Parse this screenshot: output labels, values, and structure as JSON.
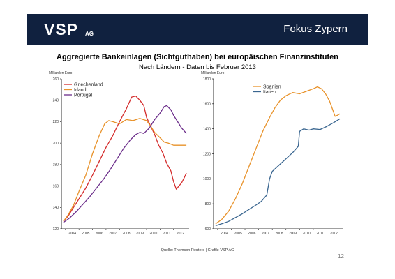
{
  "header": {
    "logo": "VSP",
    "logo_sub": "AG",
    "title": "Fokus Zypern",
    "bg_color": "#10213f"
  },
  "slide": {
    "title": "Aggregierte Bankeinlagen (Sichtguthaben) bei europäischen Finanzinstituten",
    "subtitle": "Nach Ländern - Daten bis Februar 2013",
    "source": "Quelle: Thomson Reuters | Grafik: VSP AG",
    "page_number": "12"
  },
  "chart_data": [
    {
      "type": "line",
      "ylabel": "Milliarden Euro",
      "ylim": [
        120,
        260
      ],
      "yticks": [
        "120",
        "140",
        "160",
        "180",
        "200",
        "220",
        "240",
        "260"
      ],
      "xlim": [
        2003.7,
        2013.15
      ],
      "xticks": [
        "2004",
        "2005",
        "2006",
        "2007",
        "2008",
        "2009",
        "2010",
        "2011",
        "2012"
      ],
      "legend_position": "top-left",
      "series": [
        {
          "name": "Griechenland",
          "color": "#d42c2c",
          "points": [
            [
              2003.85,
              127
            ],
            [
              2004.2,
              132
            ],
            [
              2004.6,
              140
            ],
            [
              2005.0,
              148
            ],
            [
              2005.5,
              158
            ],
            [
              2006.0,
              170
            ],
            [
              2006.5,
              183
            ],
            [
              2007.0,
              196
            ],
            [
              2007.5,
              207
            ],
            [
              2008.0,
              220
            ],
            [
              2008.5,
              232
            ],
            [
              2008.9,
              243
            ],
            [
              2009.2,
              244
            ],
            [
              2009.5,
              240
            ],
            [
              2009.8,
              235
            ],
            [
              2010.0,
              224
            ],
            [
              2010.3,
              216
            ],
            [
              2010.6,
              208
            ],
            [
              2010.9,
              198
            ],
            [
              2011.2,
              191
            ],
            [
              2011.5,
              181
            ],
            [
              2011.8,
              174
            ],
            [
              2012.0,
              164
            ],
            [
              2012.2,
              157
            ],
            [
              2012.4,
              160
            ],
            [
              2012.6,
              163
            ],
            [
              2012.8,
              168
            ],
            [
              2012.95,
              172
            ]
          ]
        },
        {
          "name": "Irland",
          "color": "#e8922a",
          "points": [
            [
              2003.85,
              127
            ],
            [
              2004.2,
              133
            ],
            [
              2004.6,
              142
            ],
            [
              2005.0,
              155
            ],
            [
              2005.5,
              170
            ],
            [
              2006.0,
              190
            ],
            [
              2006.5,
              207
            ],
            [
              2006.9,
              218
            ],
            [
              2007.2,
              221
            ],
            [
              2007.5,
              220
            ],
            [
              2008.0,
              218
            ],
            [
              2008.5,
              222
            ],
            [
              2009.0,
              221
            ],
            [
              2009.5,
              223
            ],
            [
              2010.0,
              221
            ],
            [
              2010.3,
              216
            ],
            [
              2010.6,
              210
            ],
            [
              2011.0,
              205
            ],
            [
              2011.3,
              201
            ],
            [
              2011.6,
              200
            ],
            [
              2012.0,
              198
            ],
            [
              2012.5,
              198
            ],
            [
              2012.95,
              198
            ]
          ]
        },
        {
          "name": "Portugal",
          "color": "#6b2d8a",
          "points": [
            [
              2003.85,
              126
            ],
            [
              2004.3,
              130
            ],
            [
              2004.8,
              136
            ],
            [
              2005.3,
              143
            ],
            [
              2005.8,
              150
            ],
            [
              2006.3,
              158
            ],
            [
              2006.8,
              166
            ],
            [
              2007.3,
              175
            ],
            [
              2007.8,
              185
            ],
            [
              2008.3,
              195
            ],
            [
              2008.8,
              203
            ],
            [
              2009.2,
              208
            ],
            [
              2009.5,
              210
            ],
            [
              2009.8,
              209
            ],
            [
              2010.2,
              214
            ],
            [
              2010.6,
              222
            ],
            [
              2011.0,
              228
            ],
            [
              2011.3,
              234
            ],
            [
              2011.5,
              235
            ],
            [
              2011.8,
              231
            ],
            [
              2012.0,
              226
            ],
            [
              2012.3,
              220
            ],
            [
              2012.6,
              214
            ],
            [
              2012.95,
              209
            ]
          ]
        }
      ]
    },
    {
      "type": "line",
      "ylabel": "Milliarden Euro",
      "ylim": [
        600,
        1800
      ],
      "yticks": [
        "600",
        "800",
        "1000",
        "1200",
        "1400",
        "1600",
        "1800"
      ],
      "xlim": [
        2003.7,
        2013.15
      ],
      "xticks": [
        "2004",
        "2005",
        "2006",
        "2007",
        "2008",
        "2009",
        "2010",
        "2011",
        "2012"
      ],
      "legend_position": "top-left",
      "series": [
        {
          "name": "Spanien",
          "color": "#e8922a",
          "points": [
            [
              2003.85,
              640
            ],
            [
              2004.3,
              675
            ],
            [
              2004.8,
              740
            ],
            [
              2005.3,
              840
            ],
            [
              2005.8,
              960
            ],
            [
              2006.3,
              1100
            ],
            [
              2006.8,
              1240
            ],
            [
              2007.3,
              1380
            ],
            [
              2007.8,
              1490
            ],
            [
              2008.2,
              1570
            ],
            [
              2008.6,
              1630
            ],
            [
              2009.0,
              1665
            ],
            [
              2009.5,
              1690
            ],
            [
              2010.0,
              1680
            ],
            [
              2010.5,
              1700
            ],
            [
              2011.0,
              1720
            ],
            [
              2011.3,
              1735
            ],
            [
              2011.6,
              1720
            ],
            [
              2011.9,
              1680
            ],
            [
              2012.2,
              1620
            ],
            [
              2012.4,
              1560
            ],
            [
              2012.6,
              1500
            ],
            [
              2012.8,
              1510
            ],
            [
              2012.95,
              1520
            ]
          ]
        },
        {
          "name": "Italien",
          "color": "#3a6690",
          "points": [
            [
              2003.85,
              625
            ],
            [
              2004.3,
              640
            ],
            [
              2004.8,
              660
            ],
            [
              2005.3,
              690
            ],
            [
              2005.8,
              720
            ],
            [
              2006.3,
              755
            ],
            [
              2006.8,
              790
            ],
            [
              2007.2,
              820
            ],
            [
              2007.6,
              870
            ],
            [
              2007.8,
              1000
            ],
            [
              2008.0,
              1060
            ],
            [
              2008.5,
              1110
            ],
            [
              2009.0,
              1160
            ],
            [
              2009.5,
              1210
            ],
            [
              2009.9,
              1260
            ],
            [
              2010.0,
              1380
            ],
            [
              2010.3,
              1400
            ],
            [
              2010.7,
              1390
            ],
            [
              2011.0,
              1400
            ],
            [
              2011.5,
              1395
            ],
            [
              2012.0,
              1420
            ],
            [
              2012.5,
              1450
            ],
            [
              2012.95,
              1480
            ]
          ]
        }
      ]
    }
  ]
}
